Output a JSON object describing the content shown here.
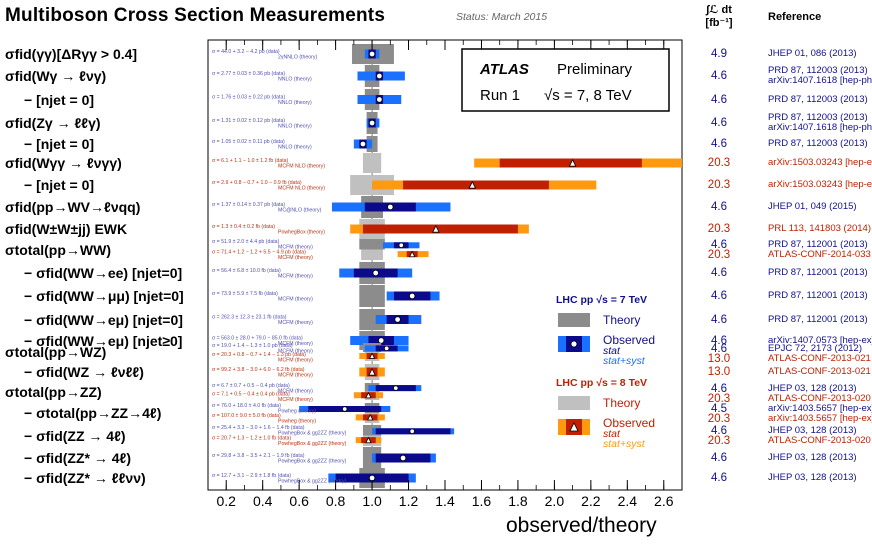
{
  "title": "Multiboson Cross Section Measurements",
  "status": "Status: March 2015",
  "lumi_header": "∫ℒ dt",
  "lumi_unit": "[fb⁻¹]",
  "ref_header": "Reference",
  "atlas_box": {
    "atlas": "ATLAS",
    "preliminary": "Preliminary",
    "run": "Run 1",
    "energy": "√s = 7, 8 TeV"
  },
  "legend_7": {
    "header": "LHC pp  √s = 7 TeV",
    "theory": "Theory",
    "observed": "Observed",
    "stat": "stat",
    "statsyst": "stat+syst"
  },
  "legend_8": {
    "header": "LHC pp  √s = 8 TeV",
    "theory": "Theory",
    "observed": "Observed",
    "stat": "stat",
    "statsyst": "stat+syst"
  },
  "colors": {
    "frame": "#000000",
    "theory7": "#8c8c8c",
    "theory8": "#c0c0c0",
    "stat7": "#0a0a8a",
    "syst7": "#1a70ff",
    "stat8": "#c02000",
    "syst8": "#ff9a10",
    "label7": "#5050b0",
    "label8": "#c03010",
    "lumi7": "#10108c",
    "lumi8": "#c02000"
  },
  "chart_data": {
    "type": "forest",
    "xlabel": "observed/theory",
    "xlim": [
      0.1,
      2.7
    ],
    "xticks": [
      "0.2",
      "0.4",
      "0.6",
      "0.8",
      "1.0",
      "1.2",
      "1.4",
      "1.6",
      "1.8",
      "2.0",
      "2.2",
      "2.4",
      "2.6"
    ],
    "rows": [
      {
        "label": "σfid(γγ)[ΔRγγ > 0.4]",
        "sub": false,
        "lumi": [
          "4.9"
        ],
        "ref": [
          "JHEP 01, 086 (2013)"
        ],
        "ref_e": [
          "7"
        ],
        "meas": [
          {
            "e": "7",
            "val": 1.0,
            "stat": [
              0.98,
              1.02
            ],
            "syst": [
              0.96,
              1.04
            ],
            "th": [
              0.89,
              1.12
            ],
            "l1": "σ = 44.0 + 3.2 − 4.2 pb (data)",
            "l2": "2γNNLO (theory)"
          }
        ]
      },
      {
        "label": "σfid(Wγ → ℓνγ)",
        "sub": false,
        "lumi": [
          "4.6"
        ],
        "ref": [
          "PRD 87, 112003 (2013)",
          "arXiv:1407.1618 [hep-ph]"
        ],
        "ref_e": [
          "7",
          "7"
        ],
        "meas": [
          {
            "e": "7",
            "val": 1.04,
            "stat": [
              1.02,
              1.06
            ],
            "syst": [
              0.92,
              1.18
            ],
            "th": [
              0.96,
              1.04
            ],
            "l1": "σ = 2.77 ± 0.03 ± 0.36 pb (data)",
            "l2": "NNLO (theory)"
          }
        ]
      },
      {
        "label": "− [njet = 0]",
        "sub": true,
        "lumi": [
          "4.6"
        ],
        "ref": [
          "PRD 87, 112003 (2013)"
        ],
        "ref_e": [
          "7"
        ],
        "meas": [
          {
            "e": "7",
            "val": 1.04,
            "stat": [
              1.02,
              1.06
            ],
            "syst": [
              0.92,
              1.16
            ],
            "th": [
              0.96,
              1.04
            ],
            "l1": "σ = 1.76 ± 0.03 ± 0.22 pb (data)",
            "l2": "NNLO (theory)"
          }
        ]
      },
      {
        "label": "σfid(Zγ → ℓℓγ)",
        "sub": false,
        "lumi": [
          "4.6"
        ],
        "ref": [
          "PRD 87, 112003 (2013)",
          "arXiv:1407.1618 [hep-ph]"
        ],
        "ref_e": [
          "7",
          "7"
        ],
        "meas": [
          {
            "e": "7",
            "val": 1.0,
            "stat": [
              0.98,
              1.02
            ],
            "syst": [
              0.97,
              1.04
            ],
            "th": [
              0.97,
              1.03
            ],
            "l1": "σ = 1.31 ± 0.02 ± 0.12 pb (data)",
            "l2": "NNLO (theory)"
          }
        ]
      },
      {
        "label": "− [njet = 0]",
        "sub": true,
        "lumi": [
          "4.6"
        ],
        "ref": [
          "PRD 87, 112003 (2013)"
        ],
        "ref_e": [
          "7"
        ],
        "meas": [
          {
            "e": "7",
            "val": 0.95,
            "stat": [
              0.93,
              0.97
            ],
            "syst": [
              0.9,
              1.0
            ],
            "th": [
              0.97,
              1.03
            ],
            "l1": "σ = 1.05 ± 0.02 ± 0.11 pb (data)",
            "l2": "NNLO (theory)"
          }
        ]
      },
      {
        "label": "σfid(Wγγ → ℓνγγ)",
        "sub": false,
        "lumi": [
          "20.3"
        ],
        "ref": [
          "arXiv:1503.03243 [hep-ex]"
        ],
        "ref_e": [
          "8"
        ],
        "meas": [
          {
            "e": "8",
            "val": 2.1,
            "stat": [
              1.7,
              2.48
            ],
            "syst": [
              1.56,
              2.7
            ],
            "th": [
              0.95,
              1.05
            ],
            "l1": "σ = 6.1 + 1.1 − 1.0 ± 1.2 fb (data)",
            "l2": "MCFM NLO (theory)"
          }
        ]
      },
      {
        "label": "− [njet = 0]",
        "sub": true,
        "lumi": [
          "20.3"
        ],
        "ref": [
          "arXiv:1503.03243 [hep-ex]"
        ],
        "ref_e": [
          "8"
        ],
        "meas": [
          {
            "e": "8",
            "val": 1.55,
            "stat": [
              1.17,
              1.97
            ],
            "syst": [
              1.0,
              2.23
            ],
            "th": [
              0.88,
              1.12
            ],
            "l1": "σ = 2.9 + 0.8 − 0.7 + 1.0 − 0.9 fb (data)",
            "l2": "MCFM NLO (theory)"
          }
        ]
      },
      {
        "label": "σfid(pp→WV→ℓνqq)",
        "sub": false,
        "lumi": [
          "4.6"
        ],
        "ref": [
          "JHEP 01, 049 (2015)"
        ],
        "ref_e": [
          "7"
        ],
        "meas": [
          {
            "e": "7",
            "val": 1.1,
            "stat": [
              0.96,
              1.24
            ],
            "syst": [
              0.78,
              1.43
            ],
            "th": [
              0.94,
              1.06
            ],
            "l1": "σ = 1.37 ± 0.14 ± 0.37 pb (data)",
            "l2": "MC@NLO (theory)"
          }
        ]
      },
      {
        "label": "σfid(W±W±jj) EWK",
        "sub": false,
        "lumi": [
          "20.3"
        ],
        "ref": [
          "PRL 113, 141803 (2014)"
        ],
        "ref_e": [
          "8"
        ],
        "meas": [
          {
            "e": "8",
            "val": 1.35,
            "stat": [
              0.95,
              1.8
            ],
            "syst": [
              0.88,
              1.86
            ],
            "th": [
              0.93,
              1.07
            ],
            "l1": "σ = 1.3 ± 0.4 ± 0.2 fb (data)",
            "l2": "PowhegBox (theory)"
          }
        ]
      },
      {
        "label": "σtotal(pp→WW)",
        "sub": false,
        "lumi": [
          "4.6",
          "20.3"
        ],
        "ref": [
          "PRD 87, 112001 (2013)",
          "ATLAS-CONF-2014-033"
        ],
        "ref_e": [
          "7",
          "8"
        ],
        "meas": [
          {
            "e": "7",
            "val": 1.16,
            "stat": [
              1.12,
              1.2
            ],
            "syst": [
              1.06,
              1.26
            ],
            "th": [
              0.93,
              1.07
            ],
            "l1": "σ = 51.9 ± 2.0 ± 4.4 pb (data)",
            "l2": "MCFM (theory)"
          },
          {
            "e": "8",
            "val": 1.22,
            "stat": [
              1.19,
              1.25
            ],
            "syst": [
              1.14,
              1.31
            ],
            "th": [
              0.94,
              1.06
            ],
            "l1": "σ = 71.4 + 1.2 − 1.2 + 5.5 − 4.9 pb (data)",
            "l2": "MCFM (theory)"
          }
        ]
      },
      {
        "label": "− σfid(WW→ee) [njet=0]",
        "sub": true,
        "lumi": [
          "4.6"
        ],
        "ref": [
          "PRD 87, 112001 (2013)"
        ],
        "ref_e": [
          "7"
        ],
        "meas": [
          {
            "e": "7",
            "val": 1.02,
            "stat": [
              0.9,
              1.14
            ],
            "syst": [
              0.82,
              1.22
            ],
            "th": [
              0.93,
              1.07
            ],
            "l1": "σ = 56.4 ± 6.8 ± 10.0 fb (data)",
            "l2": "MCFM (theory)"
          }
        ]
      },
      {
        "label": "− σfid(WW→μμ) [njet=0]",
        "sub": true,
        "lumi": [
          "4.6"
        ],
        "ref": [
          "PRD 87, 112001 (2013)"
        ],
        "ref_e": [
          "7"
        ],
        "meas": [
          {
            "e": "7",
            "val": 1.22,
            "stat": [
              1.12,
              1.32
            ],
            "syst": [
              1.08,
              1.37
            ],
            "th": [
              0.93,
              1.07
            ],
            "l1": "σ = 73.9 ± 5.9 ± 7.5 fb (data)",
            "l2": "MCFM (theory)"
          }
        ]
      },
      {
        "label": "− σfid(WW→eμ) [njet=0]",
        "sub": true,
        "lumi": [
          "4.6"
        ],
        "ref": [
          "PRD 87, 112001 (2013)"
        ],
        "ref_e": [
          "7"
        ],
        "meas": [
          {
            "e": "7",
            "val": 1.14,
            "stat": [
              1.08,
              1.2
            ],
            "syst": [
              1.02,
              1.27
            ],
            "th": [
              0.93,
              1.07
            ],
            "l1": "σ = 262.3 ± 12.3 ± 23.1 fb (data)",
            "l2": "MCFM (theory)"
          }
        ]
      },
      {
        "label": "− σfid(WW→eμ) [njet≥0]",
        "sub": true,
        "lumi": [
          "4.6"
        ],
        "ref": [
          "arXiv:1407.0573 [hep-ex]"
        ],
        "ref_e": [
          "7"
        ],
        "meas": [
          {
            "e": "7",
            "val": 1.05,
            "stat": [
              0.98,
              1.12
            ],
            "syst": [
              0.88,
              1.2
            ],
            "th": [
              0.93,
              1.07
            ],
            "l1": "σ = 563.0 ± 28.0 + 79.0 − 85.0 fb (data)",
            "l2": "MCFM (theory)"
          }
        ]
      },
      {
        "label": "σtotal(pp→WZ)",
        "sub": false,
        "lumi": [
          "4.6",
          "13.0"
        ],
        "ref": [
          "EPJC 72, 2173 (2012)",
          "ATLAS-CONF-2013-021"
        ],
        "ref_e": [
          "7",
          "8"
        ],
        "meas": [
          {
            "e": "7",
            "val": 1.08,
            "stat": [
              1.02,
              1.14
            ],
            "syst": [
              0.96,
              1.2
            ],
            "th": [
              0.95,
              1.05
            ],
            "l1": "σ = 19.0 + 1.4 − 1.3 ± 1.0 pb (data)",
            "l2": "MCFM (theory)"
          },
          {
            "e": "8",
            "val": 1.0,
            "stat": [
              0.97,
              1.03
            ],
            "syst": [
              0.93,
              1.07
            ],
            "th": [
              0.96,
              1.04
            ],
            "l1": "σ = 20.3 + 0.8 − 0.7 + 1.4 − 1.3 pb (data)",
            "l2": "MCFM (theory)"
          }
        ]
      },
      {
        "label": "− σfid(WZ → ℓνℓℓ)",
        "sub": true,
        "lumi": [
          "13.0"
        ],
        "ref": [
          "ATLAS-CONF-2013-021"
        ],
        "ref_e": [
          "8"
        ],
        "meas": [
          {
            "e": "8",
            "val": 1.0,
            "stat": [
              0.97,
              1.03
            ],
            "syst": [
              0.93,
              1.07
            ],
            "th": [
              0.96,
              1.04
            ],
            "l1": "σ = 99.2 + 3.8 − 3.0 + 6.0 − 6.2 fb (data)",
            "l2": "MCFM (theory)"
          }
        ]
      },
      {
        "label": "σtotal(pp→ZZ)",
        "sub": false,
        "lumi": [
          "4.6",
          "20.3"
        ],
        "ref": [
          "JHEP 03, 128 (2013)",
          "ATLAS-CONF-2013-020"
        ],
        "ref_e": [
          "7",
          "8"
        ],
        "meas": [
          {
            "e": "7",
            "val": 1.13,
            "stat": [
              1.02,
              1.24
            ],
            "syst": [
              0.98,
              1.27
            ],
            "th": [
              0.96,
              1.04
            ],
            "l1": "σ = 6.7 ± 0.7 + 0.5 − 0.4 pb (data)",
            "l2": "MCFM (theory)"
          },
          {
            "e": "8",
            "val": 0.98,
            "stat": [
              0.94,
              1.02
            ],
            "syst": [
              0.9,
              1.06
            ],
            "th": [
              0.96,
              1.04
            ],
            "l1": "σ = 7.1 + 0.5 − 0.4 ± 0.4 pb (data)",
            "l2": "MCFM (theory)"
          }
        ]
      },
      {
        "label": "− σtotal(pp→ZZ→4ℓ)",
        "sub": true,
        "lumi": [
          "4.5",
          "20.3"
        ],
        "ref": [
          "arXiv:1403.5657 [hep-ex]",
          "arXiv:1403.5657 [hep-ex]"
        ],
        "ref_e": [
          "7",
          "8"
        ],
        "meas": [
          {
            "e": "7",
            "val": 0.85,
            "stat": [
              0.65,
              1.05
            ],
            "syst": [
              0.6,
              1.1
            ],
            "th": [
              0.96,
              1.04
            ],
            "l1": "σ = 76.0 + 18.0 ± 4.0 fb (data)",
            "l2": "Powheg (theory)"
          },
          {
            "e": "8",
            "val": 0.99,
            "stat": [
              0.95,
              1.03
            ],
            "syst": [
              0.91,
              1.07
            ],
            "th": [
              0.96,
              1.04
            ],
            "l1": "σ = 107.0 ± 9.0 ± 5.0 fb (data)",
            "l2": "Powheg (theory)"
          }
        ]
      },
      {
        "label": "− σfid(ZZ → 4ℓ)",
        "sub": true,
        "lumi": [
          "4.6",
          "20.3"
        ],
        "ref": [
          "JHEP 03, 128 (2013)",
          "ATLAS-CONF-2013-020"
        ],
        "ref_e": [
          "7",
          "8"
        ],
        "meas": [
          {
            "e": "7",
            "val": 1.22,
            "stat": [
              1.02,
              1.43
            ],
            "syst": [
              1.0,
              1.45
            ],
            "th": [
              0.95,
              1.05
            ],
            "l1": "σ = 25.4 + 3.3 − 3.0 + 1.6 − 1.4 fb (data)",
            "l2": "PowhegBox & gg2ZZ (theory)"
          },
          {
            "e": "8",
            "val": 0.98,
            "stat": [
              0.94,
              1.02
            ],
            "syst": [
              0.91,
              1.05
            ],
            "th": [
              0.95,
              1.05
            ],
            "l1": "σ = 20.7 + 1.3 − 1.2 ± 1.0 fb (data)",
            "l2": "PowhegBox & gg2ZZ (theory)"
          }
        ]
      },
      {
        "label": "− σfid(ZZ* → 4ℓ)",
        "sub": true,
        "lumi": [
          "4.6"
        ],
        "ref": [
          "JHEP 03, 128 (2013)"
        ],
        "ref_e": [
          "7"
        ],
        "meas": [
          {
            "e": "7",
            "val": 1.17,
            "stat": [
              1.02,
              1.32
            ],
            "syst": [
              1.0,
              1.35
            ],
            "th": [
              0.95,
              1.05
            ],
            "l1": "σ = 29.8 + 3.8 − 3.5 + 2.1 − 1.9 fb (data)",
            "l2": "PowhegBox & gg2ZZ (theory)"
          }
        ]
      },
      {
        "label": "− σfid(ZZ* → ℓℓνν)",
        "sub": true,
        "lumi": [
          "4.6"
        ],
        "ref": [
          "JHEP 03, 128 (2013)"
        ],
        "ref_e": [
          "7"
        ],
        "meas": [
          {
            "e": "7",
            "val": 1.0,
            "stat": [
              0.8,
              1.2
            ],
            "syst": [
              0.76,
              1.24
            ],
            "th": [
              0.93,
              1.07
            ],
            "l1": "σ = 12.7 + 3.1 − 2.9 ± 1.8 fb (data)",
            "l2": "PowhegBox & gg2ZZ (theory)"
          }
        ]
      }
    ]
  }
}
